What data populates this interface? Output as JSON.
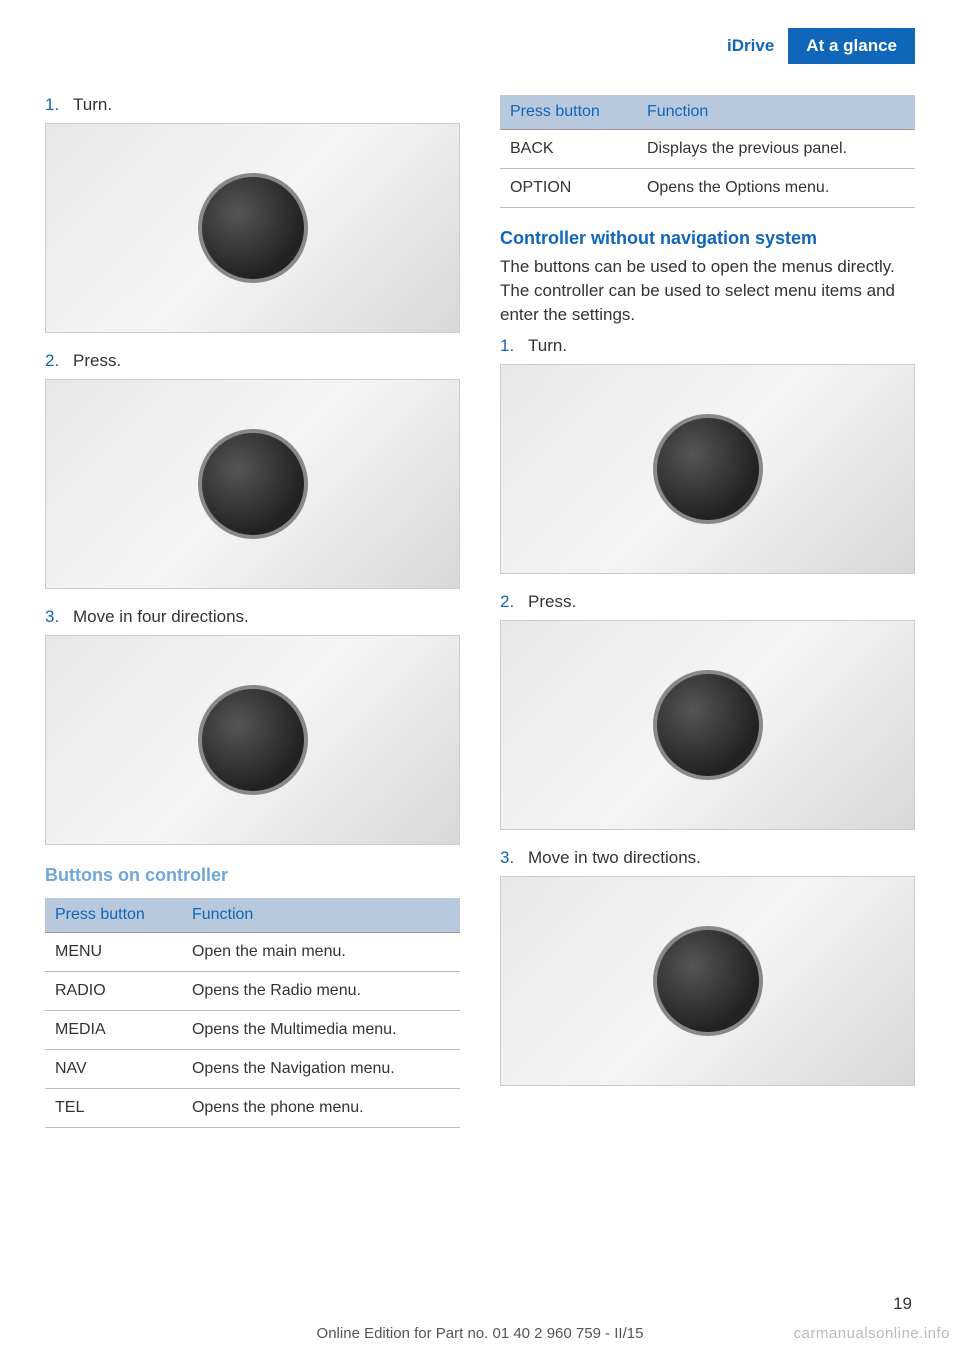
{
  "header": {
    "section": "iDrive",
    "chapter": "At a glance"
  },
  "left": {
    "steps": [
      {
        "num": "1.",
        "text": "Turn."
      },
      {
        "num": "2.",
        "text": "Press."
      },
      {
        "num": "3.",
        "text": "Move in four directions."
      }
    ],
    "buttons_heading": "Buttons on controller",
    "table": {
      "headers": [
        "Press button",
        "Function"
      ],
      "rows": [
        [
          "MENU",
          "Open the main menu."
        ],
        [
          "RADIO",
          "Opens the Radio menu."
        ],
        [
          "MEDIA",
          "Opens the Multimedia menu."
        ],
        [
          "NAV",
          "Opens the Navigation menu."
        ],
        [
          "TEL",
          "Opens the phone menu."
        ]
      ]
    }
  },
  "right": {
    "table": {
      "headers": [
        "Press button",
        "Function"
      ],
      "rows": [
        [
          "BACK",
          "Displays the previous panel."
        ],
        [
          "OPTION",
          "Opens the Options menu."
        ]
      ]
    },
    "heading": "Controller without navigation system",
    "intro": "The buttons can be used to open the menus directly. The controller can be used to select menu items and enter the settings.",
    "steps": [
      {
        "num": "1.",
        "text": "Turn."
      },
      {
        "num": "2.",
        "text": "Press."
      },
      {
        "num": "3.",
        "text": "Move in two directions."
      }
    ]
  },
  "page_number": "19",
  "footer": "Online Edition for Part no. 01 40 2 960 759 - II/15",
  "watermark": "carmanualsonline.info",
  "colors": {
    "brand_blue": "#1066b8",
    "light_blue": "#6fa8d8",
    "table_header_bg": "#b8c8dd",
    "text": "#333333",
    "background": "#ffffff"
  }
}
